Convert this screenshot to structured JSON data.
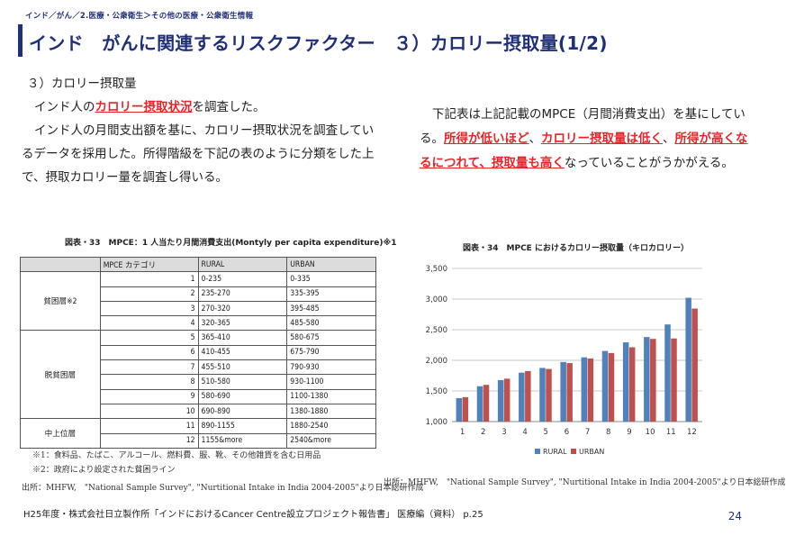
{
  "breadcrumb": "インド／がん／2.医療・公衆衛生＞その他の医療・公衆衛生情報",
  "title": "インド　がんに関連するリスクファクター　３）カロリー摂取量(1/2)",
  "left": {
    "heading": "３）カロリー摂取量",
    "line1_pre": "インド人の",
    "line1_hl": "カロリー摂取状況",
    "line1_post": "を調査した。",
    "para2": "インド人の月間支出額を基に、カロリー摂取状況を調査しているデータを採用した。所得階級を下記の表のように分類をした上で、摂取カロリー量を調査し得いる。"
  },
  "right": {
    "pre": "下記表は上記記載のMPCE（月間消費支出）を基にしている。",
    "hl1": "所得が低いほど",
    "sep1": "、",
    "hl2": "カロリー摂取量は低く",
    "sep2": "、",
    "hl3": "所得が高くなるにつれて、摂取量も高く",
    "post": "なっていることがうかがえる。"
  },
  "table": {
    "caption": "図表・33　MPCE：1 人当たり月間消費支出(Montyly per capita expenditure)※1",
    "headers": [
      "",
      "MPCE カテゴリ",
      "RURAL",
      "URBAN"
    ],
    "groups": [
      {
        "label": "貧困層※2",
        "rows": [
          {
            "cat": "1",
            "rural": "0-235",
            "urban": "0-335"
          },
          {
            "cat": "2",
            "rural": "235-270",
            "urban": "335-395"
          },
          {
            "cat": "3",
            "rural": "270-320",
            "urban": "395-485"
          },
          {
            "cat": "4",
            "rural": "320-365",
            "urban": "485-580"
          }
        ]
      },
      {
        "label": "脱貧困層",
        "rows": [
          {
            "cat": "5",
            "rural": "365-410",
            "urban": "580-675"
          },
          {
            "cat": "6",
            "rural": "410-455",
            "urban": "675-790"
          },
          {
            "cat": "7",
            "rural": "455-510",
            "urban": "790-930"
          },
          {
            "cat": "8",
            "rural": "510-580",
            "urban": "930-1100"
          },
          {
            "cat": "9",
            "rural": "580-690",
            "urban": "1100-1380"
          },
          {
            "cat": "10",
            "rural": "690-890",
            "urban": "1380-1880"
          }
        ]
      },
      {
        "label": "中上位層",
        "rows": [
          {
            "cat": "11",
            "rural": "890-1155",
            "urban": "1880-2540"
          },
          {
            "cat": "12",
            "rural": "1155&more",
            "urban": "2540&more"
          }
        ]
      }
    ],
    "note1": "※1：食料品、たばこ、アルコール、燃料費、服、靴、その他雑貨を含む日用品",
    "note2": "※2：政府により設定された貧困ライン",
    "source": "出所：MHFW,　\"National Sample Survey\", \"Nurtitional Intake in India 2004-2005\"より日本総研作成"
  },
  "chart_data": {
    "type": "bar",
    "title": "図表・34　MPCE におけるカロリー摂取量（キロカロリー）",
    "categories": [
      "1",
      "2",
      "3",
      "4",
      "5",
      "6",
      "7",
      "8",
      "9",
      "10",
      "11",
      "12"
    ],
    "series": [
      {
        "name": "RURAL",
        "color": "#4f81bd",
        "values": [
          1383,
          1577,
          1678,
          1799,
          1876,
          1973,
          2049,
          2153,
          2293,
          2380,
          2586,
          3021
        ]
      },
      {
        "name": "URBAN",
        "color": "#c0504d",
        "values": [
          1398,
          1600,
          1701,
          1824,
          1859,
          1955,
          2030,
          2119,
          2213,
          2350,
          2357,
          2845
        ]
      }
    ],
    "ylim": [
      1000,
      3500
    ],
    "yticks": [
      "1,000",
      "1,500",
      "2,000",
      "2,500",
      "3,000",
      "3,500"
    ],
    "grid": true,
    "legend": "bottom",
    "source": "出所：MHFW,　\"National Sample Survey\", \"Nurtitional Intake in India 2004-2005\"より日本総研作成"
  },
  "footer": "H25年度・株式会社日立製作所「インドにおけるCancer Centre設立プロジェクト報告書」 医療編（資料） p.25",
  "page_number": "24"
}
